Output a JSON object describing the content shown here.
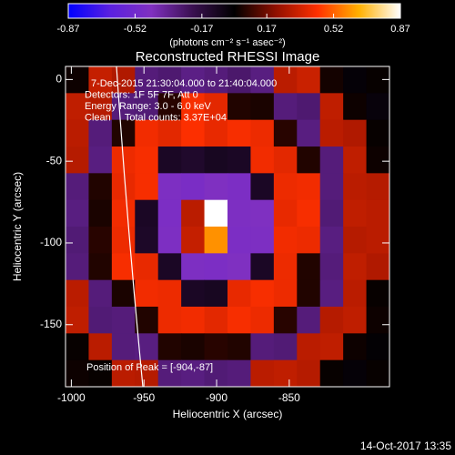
{
  "chart_data": {
    "type": "heatmap",
    "title": "Reconstructed RHESSI Image",
    "x_label": "Heliocentric X (arcsec)",
    "y_label": "Heliocentric Y (arcsec)",
    "xlim": [
      -1004,
      -781
    ],
    "ylim": [
      -188,
      8
    ],
    "xticks": [
      -1000,
      -950,
      -900,
      -850
    ],
    "yticks": [
      0,
      -50,
      -100,
      -150
    ],
    "annotations": [
      "7-Dec-2015 21:30:04.000 to 21:40:04.000",
      "Detectors: 1F 5F 7F, Att 0",
      "Energy Range: 3.0 - 6.0 keV",
      "Clean     Total counts: 3.37E+04"
    ],
    "peak_note": "Position of Peak = [-904,-87]",
    "timestamp": "14-Oct-2017 13:35",
    "colorbar": {
      "lim": [
        -0.87,
        0.87
      ],
      "ticks": [
        -0.87,
        -0.52,
        -0.17,
        0.17,
        0.52,
        0.87
      ],
      "label": "(photons cm⁻² s⁻¹ asec⁻²)",
      "colors": [
        "#0000ff",
        "#5a20e0",
        "#8030c0",
        "#3a1050",
        "#000000",
        "#901000",
        "#ff3000",
        "#ffb000",
        "#ffffff"
      ]
    },
    "values": [
      [
        0.02,
        0.32,
        0.28,
        -0.3,
        -0.28,
        -0.32,
        -0.3,
        -0.27,
        -0.31,
        0.3,
        0.33,
        0.03,
        -0.02,
        0.01
      ],
      [
        0.31,
        0.29,
        -0.3,
        -0.29,
        0.06,
        0.42,
        0.38,
        0.05,
        0.04,
        -0.3,
        -0.28,
        0.31,
        0.02,
        -0.03
      ],
      [
        0.3,
        -0.3,
        0.05,
        0.41,
        0.38,
        0.43,
        0.39,
        0.42,
        0.4,
        0.06,
        -0.31,
        0.3,
        0.28,
        0.01
      ],
      [
        0.29,
        -0.31,
        0.4,
        0.42,
        -0.1,
        -0.12,
        -0.09,
        -0.1,
        0.41,
        0.38,
        0.05,
        -0.3,
        0.31,
        0.02
      ],
      [
        -0.3,
        0.05,
        0.39,
        0.42,
        -0.45,
        -0.47,
        -0.44,
        -0.46,
        -0.1,
        0.4,
        0.41,
        -0.3,
        0.3,
        0.29
      ],
      [
        -0.31,
        0.04,
        0.41,
        -0.1,
        -0.46,
        0.3,
        0.87,
        -0.45,
        -0.44,
        0.39,
        0.42,
        -0.29,
        0.31,
        0.3
      ],
      [
        -0.29,
        0.06,
        0.4,
        -0.11,
        -0.45,
        0.32,
        0.6,
        -0.46,
        -0.45,
        0.41,
        0.4,
        -0.31,
        0.29,
        0.3
      ],
      [
        -0.3,
        0.05,
        0.42,
        0.39,
        -0.1,
        -0.45,
        -0.46,
        -0.44,
        -0.1,
        0.4,
        0.05,
        -0.3,
        0.31,
        0.28
      ],
      [
        0.3,
        -0.3,
        0.04,
        0.41,
        0.4,
        -0.1,
        -0.09,
        0.39,
        0.42,
        0.4,
        0.05,
        -0.31,
        0.3,
        0.01
      ],
      [
        0.31,
        -0.29,
        -0.3,
        0.05,
        0.4,
        0.41,
        0.38,
        0.42,
        0.4,
        0.06,
        -0.3,
        0.29,
        0.31,
        0.02
      ],
      [
        0.01,
        0.3,
        -0.3,
        -0.31,
        0.05,
        0.04,
        0.06,
        0.05,
        -0.3,
        -0.29,
        0.3,
        0.31,
        0.02,
        -0.01
      ],
      [
        0.02,
        0.01,
        0.3,
        0.29,
        -0.3,
        -0.31,
        -0.29,
        -0.3,
        0.3,
        0.31,
        0.29,
        0.01,
        -0.02,
        0.01
      ]
    ]
  }
}
